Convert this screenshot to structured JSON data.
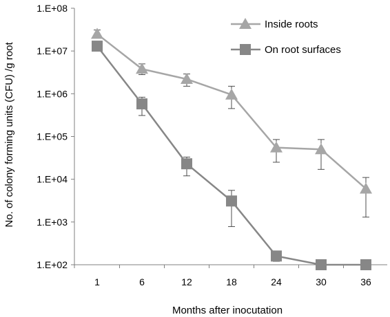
{
  "chart_data": {
    "type": "line",
    "xlabel": "Months after inocutation",
    "ylabel": "No. of colony forming units (CFU) /g root",
    "y_scale": "log",
    "ylim": [
      100,
      100000000
    ],
    "y_tick_values": [
      100,
      1000,
      10000,
      100000,
      1000000,
      10000000,
      100000000
    ],
    "y_tick_labels": [
      "1.E+02",
      "1.E+03",
      "1.E+04",
      "1.E+05",
      "1.E+06",
      "1.E+07",
      "1.E+08"
    ],
    "categories": [
      "1",
      "6",
      "12",
      "18",
      "24",
      "30",
      "36"
    ],
    "legend_position": "top-right",
    "grid": false,
    "series": [
      {
        "name": "Inside roots",
        "marker": "triangle",
        "color": "#a6a6a6",
        "values": [
          25000000,
          3800000,
          2200000,
          950000,
          55000,
          50000,
          6000
        ],
        "err_low": [
          20000000,
          2800000,
          1500000,
          450000,
          25000,
          17000,
          1300
        ],
        "err_high": [
          31000000,
          5000000,
          2900000,
          1500000,
          85000,
          85000,
          11000
        ]
      },
      {
        "name": "On root surfaces",
        "marker": "square",
        "color": "#878787",
        "values": [
          13000000,
          580000,
          23000,
          3100,
          160,
          100,
          100
        ],
        "err_low": [
          13000000,
          310000,
          12000,
          780,
          120,
          100,
          100
        ],
        "err_high": [
          13000000,
          830000,
          33000,
          5500,
          200,
          100,
          100
        ]
      }
    ]
  }
}
